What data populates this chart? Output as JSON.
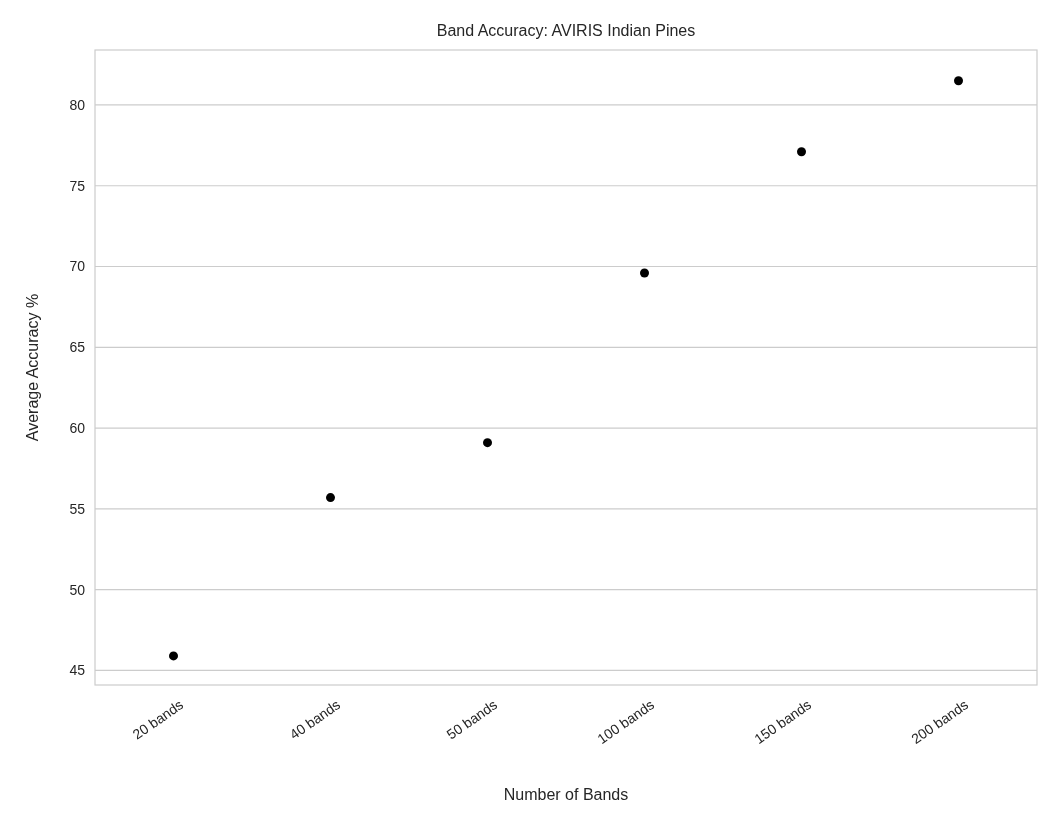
{
  "chart_data": {
    "type": "scatter",
    "title": "Band Accuracy: AVIRIS Indian Pines",
    "xlabel": "Number of Bands",
    "ylabel": "Average Accuracy %",
    "categories": [
      "20 bands",
      "40 bands",
      "50 bands",
      "100 bands",
      "150 bands",
      "200 bands"
    ],
    "series": [
      {
        "color": "#000000",
        "values": [
          45.9,
          55.7,
          59.1,
          69.6,
          77.1,
          81.5
        ]
      }
    ],
    "ylim": [
      44.1,
      83.4
    ],
    "yticks": [
      45,
      50,
      55,
      60,
      65,
      70,
      75,
      80
    ],
    "grid": "y",
    "marker": "circle"
  }
}
